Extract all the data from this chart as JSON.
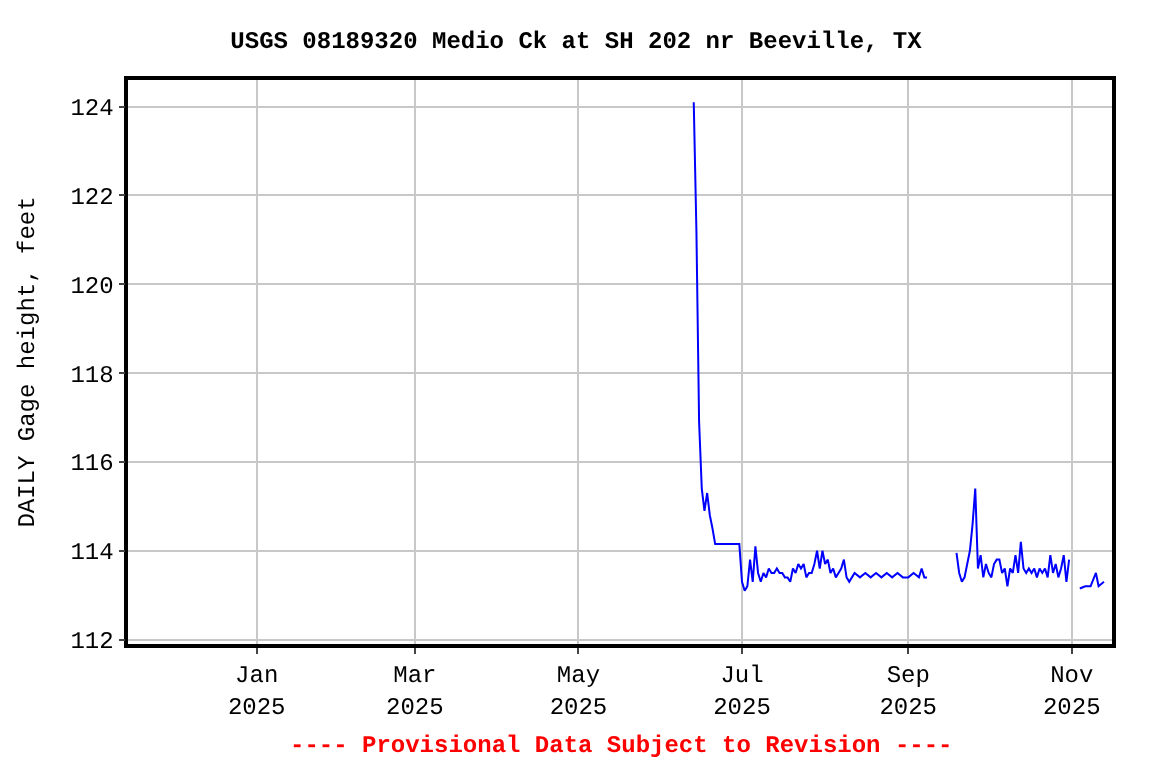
{
  "chart_data": {
    "type": "line",
    "title": "USGS 08189320 Medio Ck at SH 202 nr Beeville, TX",
    "ylabel": "DAILY Gage height, feet",
    "annotations": [
      "---- Provisional Data Subject to Revision ----"
    ],
    "x": [
      "2025-06-13",
      "2025-06-14",
      "2025-06-15",
      "2025-06-16",
      "2025-06-17",
      "2025-06-18",
      "2025-06-19",
      "2025-06-20",
      "2025-06-21",
      "2025-06-30",
      "2025-07-01",
      "2025-07-02",
      "2025-07-03",
      "2025-07-04",
      "2025-07-05",
      "2025-07-06",
      "2025-07-07",
      "2025-07-08",
      "2025-07-09",
      "2025-07-10",
      "2025-07-11",
      "2025-07-12",
      "2025-07-13",
      "2025-07-14",
      "2025-07-15",
      "2025-07-16",
      "2025-07-17",
      "2025-07-18",
      "2025-07-19",
      "2025-07-20",
      "2025-07-21",
      "2025-07-22",
      "2025-07-23",
      "2025-07-24",
      "2025-07-25",
      "2025-07-26",
      "2025-07-27",
      "2025-07-28",
      "2025-07-29",
      "2025-07-30",
      "2025-07-31",
      "2025-08-01",
      "2025-08-02",
      "2025-08-03",
      "2025-08-04",
      "2025-08-05",
      "2025-08-06",
      "2025-08-07",
      "2025-08-08",
      "2025-08-09",
      "2025-08-10",
      "2025-08-11",
      "2025-08-12",
      "2025-08-14",
      "2025-08-16",
      "2025-08-18",
      "2025-08-20",
      "2025-08-22",
      "2025-08-24",
      "2025-08-26",
      "2025-08-28",
      "2025-08-30",
      "2025-09-01",
      "2025-09-03",
      "2025-09-05",
      "2025-09-06",
      "2025-09-07",
      "2025-09-08",
      "2025-09-09",
      "2025-09-19",
      "2025-09-20",
      "2025-09-21",
      "2025-09-22",
      "2025-09-23",
      "2025-09-24",
      "2025-09-25",
      "2025-09-26",
      "2025-09-27",
      "2025-09-28",
      "2025-09-29",
      "2025-09-30",
      "2025-10-01",
      "2025-10-02",
      "2025-10-03",
      "2025-10-04",
      "2025-10-05",
      "2025-10-06",
      "2025-10-07",
      "2025-10-08",
      "2025-10-09",
      "2025-10-10",
      "2025-10-11",
      "2025-10-12",
      "2025-10-13",
      "2025-10-14",
      "2025-10-15",
      "2025-10-16",
      "2025-10-17",
      "2025-10-18",
      "2025-10-19",
      "2025-10-20",
      "2025-10-21",
      "2025-10-22",
      "2025-10-23",
      "2025-10-24",
      "2025-10-25",
      "2025-10-26",
      "2025-10-27",
      "2025-10-28",
      "2025-10-29",
      "2025-10-30",
      "2025-10-31",
      "2025-11-01",
      "2025-11-04",
      "2025-11-06",
      "2025-11-08",
      "2025-11-10",
      "2025-11-11",
      "2025-11-13"
    ],
    "series": [
      {
        "color": "#0000ff",
        "values": [
          124.1,
          121.2,
          116.9,
          115.4,
          114.9,
          115.3,
          114.8,
          114.5,
          114.15,
          114.15,
          113.3,
          113.1,
          113.2,
          113.8,
          113.3,
          114.1,
          113.5,
          113.3,
          113.5,
          113.4,
          113.6,
          113.5,
          113.5,
          113.6,
          113.5,
          113.5,
          113.4,
          113.4,
          113.3,
          113.6,
          113.5,
          113.7,
          113.6,
          113.7,
          113.4,
          113.5,
          113.5,
          113.7,
          114.0,
          113.6,
          114.0,
          113.7,
          113.8,
          113.5,
          113.6,
          113.4,
          113.5,
          113.6,
          113.8,
          113.4,
          113.3,
          113.4,
          113.5,
          113.4,
          113.5,
          113.4,
          113.5,
          113.4,
          113.5,
          113.4,
          113.5,
          113.4,
          113.4,
          113.5,
          113.4,
          113.6,
          113.4,
          113.4,
          null,
          113.95,
          113.5,
          113.3,
          113.4,
          113.7,
          114.0,
          114.6,
          115.4,
          113.6,
          113.9,
          113.4,
          113.7,
          113.5,
          113.4,
          113.7,
          113.8,
          113.8,
          113.5,
          113.6,
          113.2,
          113.6,
          113.5,
          113.9,
          113.5,
          114.2,
          113.6,
          113.5,
          113.6,
          113.5,
          113.6,
          113.4,
          113.6,
          113.5,
          113.6,
          113.4,
          113.9,
          113.5,
          113.7,
          113.4,
          113.6,
          113.9,
          113.3,
          113.8,
          null,
          113.15,
          113.2,
          113.2,
          113.5,
          113.2,
          113.3
        ]
      }
    ],
    "xlim": [
      "2024-11-14",
      "2025-11-16"
    ],
    "xticks": [
      {
        "value": "2025-01-01",
        "label": "Jan\n2025"
      },
      {
        "value": "2025-03-01",
        "label": "Mar\n2025"
      },
      {
        "value": "2025-05-01",
        "label": "May\n2025"
      },
      {
        "value": "2025-07-01",
        "label": "Jul\n2025"
      },
      {
        "value": "2025-09-01",
        "label": "Sep\n2025"
      },
      {
        "value": "2025-11-01",
        "label": "Nov\n2025"
      }
    ],
    "ylim": [
      111.9,
      124.6
    ],
    "yticks": [
      112,
      114,
      116,
      118,
      120,
      122,
      124
    ],
    "grid": true
  }
}
